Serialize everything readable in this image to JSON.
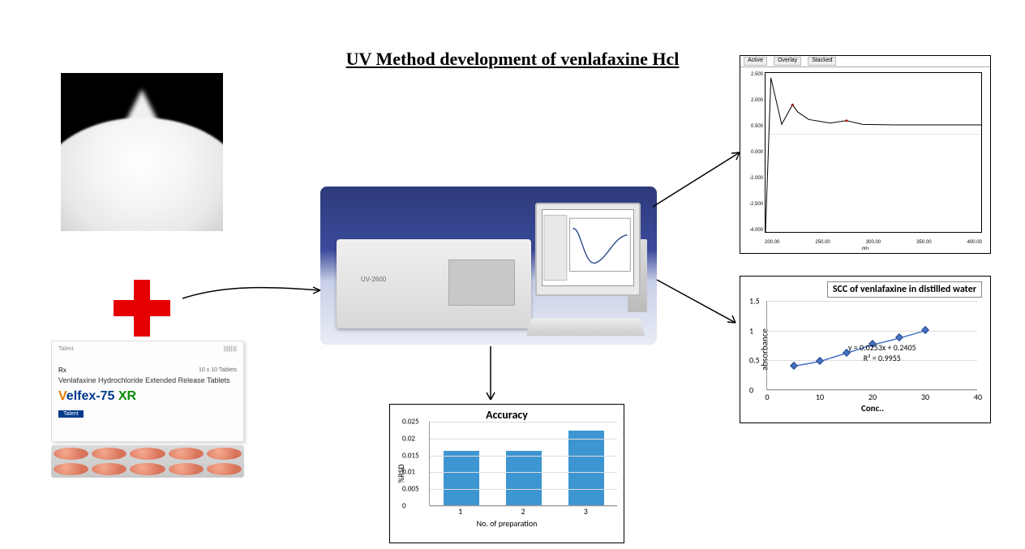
{
  "title": "UV Method development of venlafaxine Hcl",
  "powder": {
    "alt": "white powder (venlafaxine HCl API)"
  },
  "drugbox": {
    "brand_logo": "Talent",
    "rx": "Rx",
    "count": "10 x 10 Tablets",
    "description": "Venlafaxine Hydrochloride Extended Release Tablets",
    "brand_v": "V",
    "brand_rest": "elfex-75",
    "brand_xr": " XR",
    "footer": "Talent"
  },
  "instrument": {
    "model": "UV-2600",
    "alt": "UV-Vis spectrophotometer with monitor"
  },
  "uv_spectrum": {
    "tabs": [
      "Active",
      "Overlay",
      "Stacked"
    ],
    "xlim": [
      200,
      400
    ],
    "ylim": [
      -4.0,
      2.5
    ],
    "y_ticks": [
      "2.500",
      "2.000",
      "0.500",
      "0.000",
      "-2.000",
      "-2.500",
      "-4.000"
    ],
    "x_ticks": [
      "200.00",
      "250.00",
      "300.00",
      "350.00",
      "400.00"
    ],
    "x_label": "nm",
    "curve": [
      [
        200,
        -4.0
      ],
      [
        205,
        2.3
      ],
      [
        215,
        0.4
      ],
      [
        225,
        1.2
      ],
      [
        230,
        0.9
      ],
      [
        240,
        0.6
      ],
      [
        260,
        0.45
      ],
      [
        275,
        0.55
      ],
      [
        290,
        0.4
      ],
      [
        320,
        0.38
      ],
      [
        400,
        0.38
      ]
    ],
    "line_color": "#000000",
    "background": "#ffffff"
  },
  "scc_chart": {
    "type": "scatter-line",
    "title": "SCC of venlafaxine in distilled water",
    "x_label": "Conc..",
    "y_label": "absorbance",
    "xlim": [
      0,
      40
    ],
    "ylim": [
      0,
      1.5
    ],
    "x_ticks": [
      0,
      10,
      20,
      30,
      40
    ],
    "y_ticks": [
      0,
      0.5,
      1,
      1.5
    ],
    "points": [
      [
        5,
        0.4
      ],
      [
        10,
        0.48
      ],
      [
        15,
        0.62
      ],
      [
        20,
        0.76
      ],
      [
        25,
        0.87
      ],
      [
        30,
        1.0
      ]
    ],
    "marker_color": "#4472c4",
    "line_color": "#4472c4",
    "equation": "y = 0.0253x + 0.2405",
    "r2": "R² = 0.9955",
    "grid_color": "#dddddd",
    "background": "#ffffff"
  },
  "accuracy_chart": {
    "type": "bar",
    "title": "Accuracy",
    "x_label": "No. of preparation",
    "y_label": "%RSD",
    "categories": [
      "1",
      "2",
      "3"
    ],
    "values": [
      0.016,
      0.016,
      0.022
    ],
    "ylim": [
      0,
      0.025
    ],
    "y_ticks": [
      0,
      0.005,
      0.01,
      0.015,
      0.02,
      0.025
    ],
    "bar_color": "#3d95d1",
    "grid_color": "#dddddd",
    "background": "#ffffff"
  }
}
